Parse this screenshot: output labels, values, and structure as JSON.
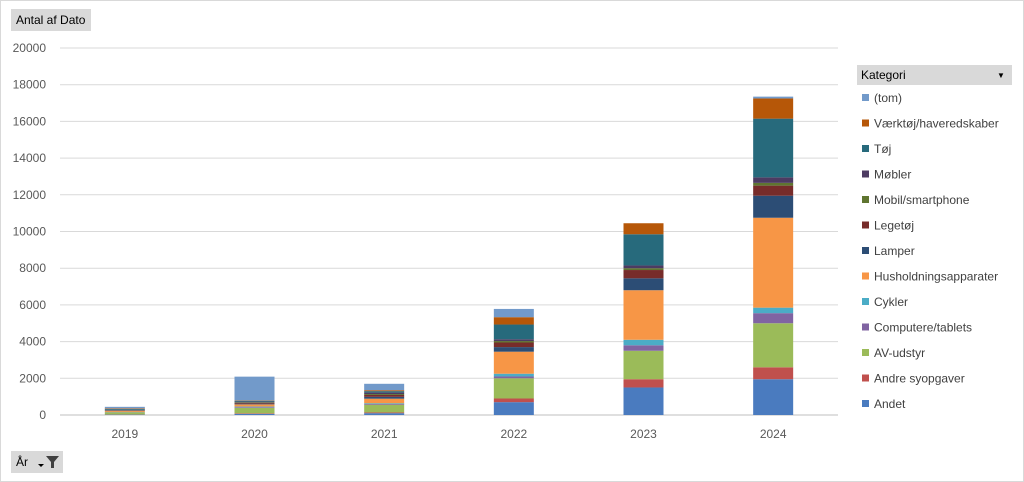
{
  "pivot": {
    "values_button": "Antal af Dato",
    "axis_button": "År",
    "legend_button": "Kategori"
  },
  "colors": {
    "Andet": "#4a7bbf",
    "Andre syopgaver": "#c0504d",
    "AV-udstyr": "#9bbb59",
    "Computere/tablets": "#8064a2",
    "Cykler": "#4bacc6",
    "Husholdningsapparater": "#f79646",
    "Lamper": "#2c4d75",
    "Legetøj": "#772c2a",
    "Mobil/smartphone": "#5f7530",
    "Møbler": "#4d3b62",
    "Tøj": "#276a7c",
    "Værktøj/haveredskaber": "#b65708",
    "(tom)": "#729aca"
  },
  "chart_data": {
    "type": "bar",
    "stacked": true,
    "categories": [
      "2019",
      "2020",
      "2021",
      "2022",
      "2023",
      "2024"
    ],
    "ylim": [
      0,
      20000
    ],
    "yticks": [
      0,
      2000,
      4000,
      6000,
      8000,
      10000,
      12000,
      14000,
      16000,
      18000,
      20000
    ],
    "grid": true,
    "legend_position": "right",
    "series": [
      {
        "name": "Andet",
        "values": [
          20,
          60,
          100,
          700,
          1500,
          1950
        ]
      },
      {
        "name": "Andre syopgaver",
        "values": [
          10,
          30,
          40,
          200,
          450,
          650
        ]
      },
      {
        "name": "AV-udstyr",
        "values": [
          120,
          300,
          420,
          1100,
          1550,
          2400
        ]
      },
      {
        "name": "Computere/tablets",
        "values": [
          10,
          40,
          40,
          100,
          300,
          550
        ]
      },
      {
        "name": "Cykler",
        "values": [
          5,
          30,
          40,
          150,
          300,
          300
        ]
      },
      {
        "name": "Husholdningsapparater",
        "values": [
          50,
          120,
          250,
          1200,
          2700,
          4900
        ]
      },
      {
        "name": "Lamper",
        "values": [
          20,
          40,
          100,
          250,
          650,
          1200
        ]
      },
      {
        "name": "Legetøj",
        "values": [
          20,
          40,
          100,
          250,
          450,
          550
        ]
      },
      {
        "name": "Mobil/smartphone",
        "values": [
          10,
          30,
          50,
          80,
          100,
          150
        ]
      },
      {
        "name": "Møbler",
        "values": [
          20,
          40,
          80,
          100,
          150,
          300
        ]
      },
      {
        "name": "Tøj",
        "values": [
          50,
          50,
          80,
          800,
          1700,
          3200
        ]
      },
      {
        "name": "Værktøj/haveredskaber",
        "values": [
          30,
          20,
          50,
          400,
          600,
          1100
        ]
      },
      {
        "name": "(tom)",
        "values": [
          80,
          1290,
          350,
          450,
          0,
          100
        ]
      }
    ]
  }
}
